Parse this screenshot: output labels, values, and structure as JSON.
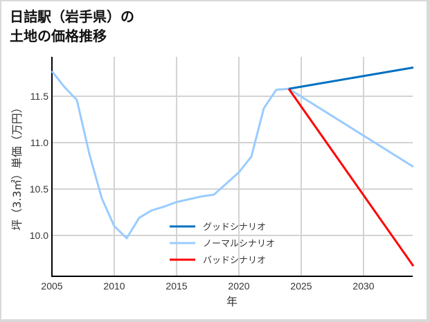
{
  "title_line1": "日詰駅（岩手県）の",
  "title_line2": "土地の価格推移",
  "chart_data": {
    "type": "line",
    "title": "日詰駅（岩手県）の土地の価格推移",
    "xlabel": "年",
    "ylabel": "坪（3.3㎡）単価（万円）",
    "xlim": [
      2005,
      2034
    ],
    "ylim": [
      9.7,
      11.9
    ],
    "xticks": [
      "2005",
      "2010",
      "2015",
      "2020",
      "2025",
      "2030"
    ],
    "yticks": [
      "10.0",
      "10.5",
      "11.0",
      "11.5"
    ],
    "grid": true,
    "legend_position": "lower center",
    "series": [
      {
        "name": "グッドシナリオ",
        "color": "#0070c0",
        "x": [
          2024,
          2034
        ],
        "values": [
          11.58,
          11.81
        ]
      },
      {
        "name": "ノーマルシナリオ",
        "color": "#99ccff",
        "x": [
          2005,
          2006,
          2007,
          2008,
          2009,
          2010,
          2011,
          2012,
          2013,
          2014,
          2015,
          2016,
          2017,
          2018,
          2019,
          2020,
          2021,
          2022,
          2023,
          2024,
          2034
        ],
        "values": [
          11.77,
          11.6,
          11.46,
          10.88,
          10.4,
          10.1,
          9.97,
          10.19,
          10.27,
          10.31,
          10.36,
          10.39,
          10.42,
          10.44,
          10.56,
          10.68,
          10.85,
          11.37,
          11.57,
          11.58,
          10.74
        ]
      },
      {
        "name": "バッドシナリオ",
        "color": "#ff0000",
        "x": [
          2024,
          2034
        ],
        "values": [
          11.58,
          9.67
        ]
      }
    ]
  }
}
